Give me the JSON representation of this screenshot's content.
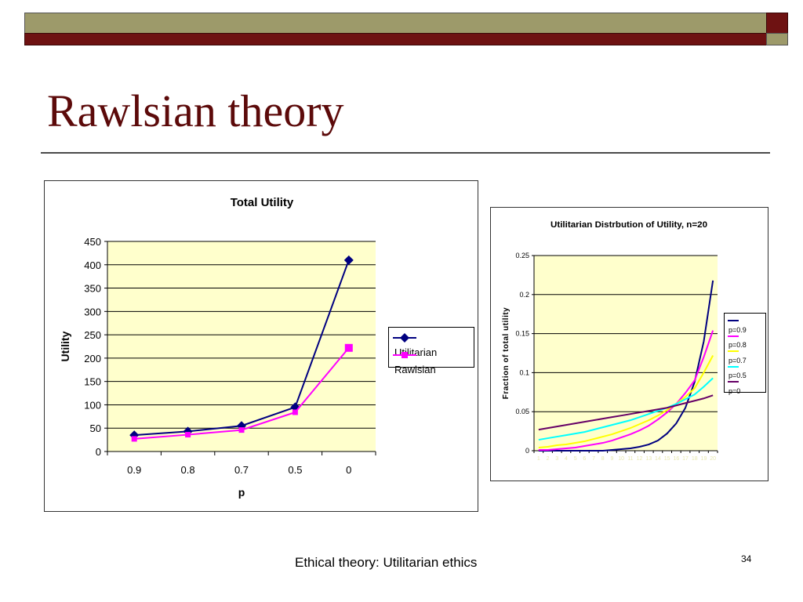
{
  "slide": {
    "title": "Rawlsian theory",
    "footer": "Ethical theory: Utilitarian ethics",
    "page_number": "34",
    "colors": {
      "olive": "#9d9a6a",
      "maroon": "#6e1212",
      "title": "#5c0a0a",
      "plot_bg": "#ffffcc"
    }
  },
  "chart_data": [
    {
      "type": "line",
      "title": "Total Utility",
      "xlabel": "p",
      "ylabel": "Utility",
      "categories": [
        "0.9",
        "0.8",
        "0.7",
        "0.5",
        "0"
      ],
      "ylim": [
        0,
        450
      ],
      "yticks": [
        0,
        50,
        100,
        150,
        200,
        250,
        300,
        350,
        400,
        450
      ],
      "grid": true,
      "legend": "right",
      "series": [
        {
          "name": "Utilitarian",
          "color": "#000080",
          "marker": "diamond",
          "values": [
            35,
            43,
            55,
            95,
            410
          ]
        },
        {
          "name": "Rawlsian",
          "color": "#ff00ff",
          "marker": "square",
          "values": [
            27,
            36,
            46,
            84,
            222
          ]
        }
      ]
    },
    {
      "type": "line",
      "title": "Utilitarian Distrbution of Utility, n=20",
      "xlabel": "",
      "ylabel": "Fraction of total utility",
      "x": [
        1,
        2,
        3,
        4,
        5,
        6,
        7,
        8,
        9,
        10,
        11,
        12,
        13,
        14,
        15,
        16,
        17,
        18,
        19,
        20
      ],
      "ylim": [
        0,
        0.25
      ],
      "yticks": [
        "0",
        "0.05",
        "0.1",
        "0.15",
        "0.2",
        "0.25"
      ],
      "grid": true,
      "legend": "right",
      "series": [
        {
          "name": "p=0.9",
          "color": "#000080",
          "values": [
            0,
            0,
            0,
            0,
            0,
            0,
            0,
            0,
            0.001,
            0.002,
            0.003,
            0.005,
            0.008,
            0.013,
            0.022,
            0.035,
            0.055,
            0.088,
            0.14,
            0.218
          ]
        },
        {
          "name": "p=0.8",
          "color": "#ff00ff",
          "values": [
            0.001,
            0.001,
            0.002,
            0.003,
            0.004,
            0.006,
            0.008,
            0.01,
            0.013,
            0.017,
            0.021,
            0.026,
            0.032,
            0.04,
            0.049,
            0.06,
            0.074,
            0.09,
            0.12,
            0.154
          ]
        },
        {
          "name": "p=0.7",
          "color": "#ffff00",
          "values": [
            0.004,
            0.005,
            0.007,
            0.008,
            0.01,
            0.012,
            0.015,
            0.018,
            0.021,
            0.025,
            0.029,
            0.034,
            0.039,
            0.045,
            0.052,
            0.06,
            0.069,
            0.08,
            0.1,
            0.122
          ]
        },
        {
          "name": "p=0.5",
          "color": "#00ffff",
          "values": [
            0.014,
            0.016,
            0.018,
            0.02,
            0.022,
            0.024,
            0.027,
            0.03,
            0.033,
            0.036,
            0.039,
            0.043,
            0.047,
            0.051,
            0.055,
            0.06,
            0.066,
            0.072,
            0.082,
            0.093
          ]
        },
        {
          "name": "p=0",
          "color": "#660066",
          "values": [
            0.027,
            0.029,
            0.031,
            0.033,
            0.035,
            0.037,
            0.039,
            0.041,
            0.043,
            0.045,
            0.047,
            0.049,
            0.051,
            0.053,
            0.055,
            0.058,
            0.061,
            0.064,
            0.067,
            0.071
          ]
        }
      ]
    }
  ]
}
